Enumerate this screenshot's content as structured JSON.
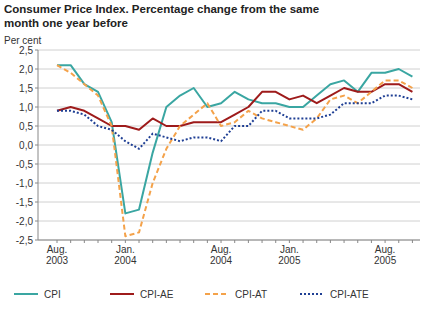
{
  "chart_data": {
    "type": "line",
    "title": "Consumer Price Index. Percentage change from the same month one year before",
    "y_label": "Per cent",
    "categories": [
      "Aug. 2003",
      null,
      null,
      null,
      null,
      "Jan. 2004",
      null,
      null,
      null,
      null,
      null,
      null,
      "Aug. 2004",
      null,
      null,
      null,
      null,
      "Jan. 2005",
      null,
      null,
      null,
      null,
      null,
      null,
      "Aug. 2005",
      null,
      null
    ],
    "series": [
      {
        "name": "CPI",
        "color": "#3aa6a2",
        "line_style": "solid",
        "values": [
          2.1,
          2.1,
          1.6,
          1.4,
          0.6,
          -1.8,
          -1.7,
          -0.2,
          1.0,
          1.3,
          1.5,
          1.0,
          1.1,
          1.4,
          1.2,
          1.1,
          1.1,
          1.0,
          1.0,
          1.3,
          1.6,
          1.7,
          1.4,
          1.9,
          1.9,
          2.0,
          1.8
        ]
      },
      {
        "name": "CPI-AE",
        "color": "#9e1b1b",
        "line_style": "solid",
        "values": [
          0.9,
          1.0,
          0.9,
          0.7,
          0.5,
          0.5,
          0.4,
          0.7,
          0.5,
          0.5,
          0.6,
          0.6,
          0.6,
          0.8,
          1.0,
          1.4,
          1.4,
          1.2,
          1.3,
          1.1,
          1.3,
          1.5,
          1.4,
          1.4,
          1.6,
          1.6,
          1.4
        ]
      },
      {
        "name": "CPI-AT",
        "color": "#f4a24a",
        "line_style": "dashed",
        "values": [
          2.1,
          1.9,
          1.6,
          1.3,
          0.5,
          -2.4,
          -2.3,
          -1.0,
          -0.1,
          0.5,
          0.8,
          1.1,
          0.5,
          0.6,
          0.9,
          0.7,
          0.6,
          0.5,
          0.4,
          0.7,
          1.2,
          1.3,
          1.1,
          1.4,
          1.7,
          1.7,
          1.5
        ]
      },
      {
        "name": "CPI-ATE",
        "color": "#1f3f94",
        "line_style": "dotted",
        "values": [
          0.9,
          0.9,
          0.8,
          0.5,
          0.4,
          0.1,
          -0.1,
          0.3,
          0.2,
          0.1,
          0.2,
          0.2,
          0.1,
          0.5,
          0.5,
          0.9,
          0.9,
          0.7,
          0.7,
          0.7,
          0.8,
          1.1,
          1.1,
          1.1,
          1.3,
          1.3,
          1.2
        ]
      }
    ],
    "ylim": [
      -2.5,
      2.5
    ],
    "yticks": [
      {
        "value": -2.5,
        "label": "-2,5"
      },
      {
        "value": -2.0,
        "label": "-2,0"
      },
      {
        "value": -1.5,
        "label": "-1,5"
      },
      {
        "value": -1.0,
        "label": "-1,0"
      },
      {
        "value": -0.5,
        "label": "-0,5"
      },
      {
        "value": 0,
        "label": "0,0"
      },
      {
        "value": 0.5,
        "label": "0,5"
      },
      {
        "value": 1.0,
        "label": "1,0"
      },
      {
        "value": 1.5,
        "label": "1,5"
      },
      {
        "value": 2.0,
        "label": "2,0"
      },
      {
        "value": 2.5,
        "label": "2,5"
      }
    ],
    "grid": true,
    "legend": "bottom"
  }
}
